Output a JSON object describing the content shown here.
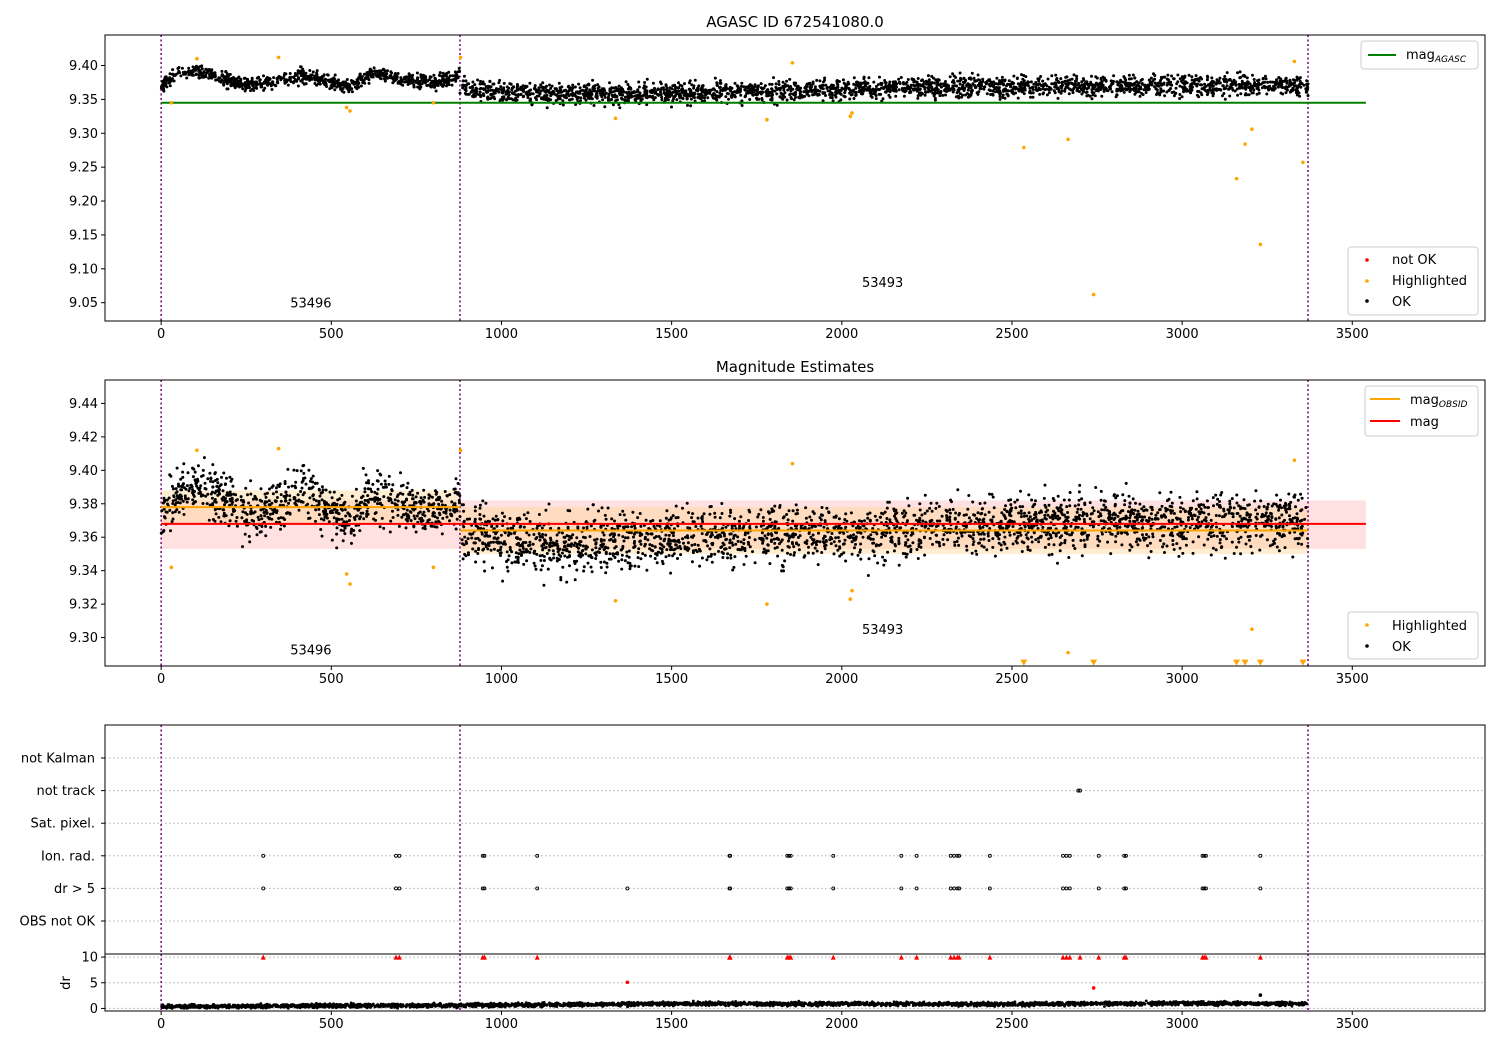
{
  "chart_data": [
    {
      "type": "scatter",
      "title": "AGASC ID 672541080.0",
      "xlim": [
        -165,
        3890
      ],
      "ylim": [
        9.023,
        9.445
      ],
      "x_ticks": [
        0,
        500,
        1000,
        1500,
        2000,
        2500,
        3000,
        3500
      ],
      "y_ticks": [
        9.05,
        9.1,
        9.15,
        9.2,
        9.25,
        9.3,
        9.35,
        9.4
      ],
      "y_tick_decimals": 2,
      "obsid_boundaries": [
        0,
        878,
        3370
      ],
      "obsid_labels": [
        {
          "text": "53496",
          "x": 440,
          "y": 9.043
        },
        {
          "text": "53493",
          "x": 2120,
          "y": 9.073
        }
      ],
      "lines": [
        {
          "name": "mag_AGASC",
          "color": "#008000",
          "x": [
            0,
            3540
          ],
          "y": [
            9.345,
            9.345
          ]
        }
      ],
      "ok_bands": [
        {
          "x_start": 0,
          "x_end": 878,
          "pattern": [
            [
              0,
              9.37
            ],
            [
              50,
              9.388
            ],
            [
              100,
              9.392
            ],
            [
              150,
              9.385
            ],
            [
              250,
              9.372
            ],
            [
              350,
              9.378
            ],
            [
              420,
              9.385
            ],
            [
              500,
              9.375
            ],
            [
              560,
              9.37
            ],
            [
              620,
              9.39
            ],
            [
              700,
              9.38
            ],
            [
              800,
              9.375
            ],
            [
              878,
              9.385
            ]
          ],
          "spread": 0.01
        },
        {
          "x_start": 878,
          "x_end": 3370,
          "pattern": [
            [
              878,
              9.368
            ],
            [
              1000,
              9.36
            ],
            [
              1200,
              9.358
            ],
            [
              1500,
              9.36
            ],
            [
              1800,
              9.362
            ],
            [
              2000,
              9.365
            ],
            [
              2300,
              9.368
            ],
            [
              2600,
              9.37
            ],
            [
              3000,
              9.37
            ],
            [
              3300,
              9.372
            ],
            [
              3370,
              9.368
            ]
          ],
          "spread": 0.014
        }
      ],
      "series": [
        {
          "name": "not OK",
          "color": "#ff0000",
          "marker": "dot",
          "x": [],
          "y": []
        },
        {
          "name": "Highlighted",
          "color": "#ffa500",
          "marker": "dot",
          "x": [
            30,
            105,
            345,
            545,
            555,
            800,
            880,
            1335,
            1780,
            1855,
            2025,
            2030,
            2535,
            2665,
            2740,
            3160,
            3185,
            3205,
            3230,
            3330,
            3355
          ],
          "y": [
            9.345,
            9.41,
            9.412,
            9.338,
            9.333,
            9.345,
            9.412,
            9.322,
            9.32,
            9.404,
            9.325,
            9.33,
            9.279,
            9.291,
            9.062,
            9.233,
            9.284,
            9.306,
            9.136,
            9.406,
            9.257
          ]
        },
        {
          "name": "OK",
          "color": "#000000",
          "marker": "dot",
          "x": [],
          "y": []
        }
      ],
      "legend_upper": {
        "placement": "upper right",
        "entries": [
          {
            "label": "mag",
            "sub": "AGASC",
            "color": "#008000"
          }
        ]
      },
      "legend_lower": {
        "placement": "lower right",
        "entries": [
          {
            "label": "not OK",
            "color": "#ff0000"
          },
          {
            "label": "Highlighted",
            "color": "#ffa500"
          },
          {
            "label": "OK",
            "color": "#000000"
          }
        ]
      }
    },
    {
      "type": "scatter",
      "title": "Magnitude Estimates",
      "xlim": [
        -165,
        3890
      ],
      "ylim": [
        9.283,
        9.454
      ],
      "x_ticks": [
        0,
        500,
        1000,
        1500,
        2000,
        2500,
        3000,
        3500
      ],
      "y_ticks": [
        9.3,
        9.32,
        9.34,
        9.36,
        9.38,
        9.4,
        9.42,
        9.44
      ],
      "y_tick_decimals": 2,
      "obsid_boundaries": [
        0,
        878,
        3370
      ],
      "obsid_labels": [
        {
          "text": "53496",
          "x": 440,
          "y": 9.29
        },
        {
          "text": "53493",
          "x": 2120,
          "y": 9.302
        }
      ],
      "bands": [
        {
          "color": "#ffaaaa",
          "opacity": 0.35,
          "x": [
            0,
            3540
          ],
          "y": [
            9.353,
            9.382
          ]
        },
        {
          "color": "#ffd79a",
          "opacity": 0.45,
          "x": [
            0,
            878
          ],
          "y": [
            9.368,
            9.388
          ]
        },
        {
          "color": "#ffd79a",
          "opacity": 0.45,
          "x": [
            878,
            3370
          ],
          "y": [
            9.35,
            9.378
          ]
        }
      ],
      "lines": [
        {
          "name": "mag_OBSID",
          "color": "#ffa500",
          "x": [
            0,
            878
          ],
          "y": [
            9.378,
            9.378
          ]
        },
        {
          "name": "mag_OBSID",
          "color": "#ffa500",
          "x": [
            878,
            3370
          ],
          "y": [
            9.364,
            9.364
          ]
        },
        {
          "name": "mag",
          "color": "#ff0000",
          "x": [
            0,
            3540
          ],
          "y": [
            9.368,
            9.368
          ]
        }
      ],
      "ok_bands": [
        {
          "x_start": 0,
          "x_end": 878,
          "pattern": [
            [
              0,
              9.372
            ],
            [
              50,
              9.385
            ],
            [
              100,
              9.392
            ],
            [
              150,
              9.388
            ],
            [
              250,
              9.372
            ],
            [
              350,
              9.38
            ],
            [
              420,
              9.388
            ],
            [
              500,
              9.374
            ],
            [
              560,
              9.37
            ],
            [
              620,
              9.388
            ],
            [
              700,
              9.378
            ],
            [
              800,
              9.374
            ],
            [
              878,
              9.385
            ]
          ],
          "spread": 0.014
        },
        {
          "x_start": 878,
          "x_end": 3370,
          "pattern": [
            [
              878,
              9.365
            ],
            [
              1000,
              9.357
            ],
            [
              1200,
              9.355
            ],
            [
              1500,
              9.36
            ],
            [
              1800,
              9.361
            ],
            [
              2000,
              9.363
            ],
            [
              2300,
              9.366
            ],
            [
              2600,
              9.368
            ],
            [
              3000,
              9.369
            ],
            [
              3300,
              9.37
            ],
            [
              3370,
              9.366
            ]
          ],
          "spread": 0.016
        }
      ],
      "series": [
        {
          "name": "Highlighted",
          "color": "#ffa500",
          "marker": "dot",
          "x": [
            30,
            105,
            345,
            545,
            555,
            800,
            880,
            1335,
            1780,
            1855,
            2025,
            2030,
            2665,
            3205,
            3330
          ],
          "y": [
            9.342,
            9.412,
            9.413,
            9.338,
            9.332,
            9.342,
            9.412,
            9.322,
            9.32,
            9.404,
            9.323,
            9.328,
            9.291,
            9.305,
            9.406
          ]
        },
        {
          "name": "below_axis",
          "color": "#ffa500",
          "marker": "triangle-down",
          "x": [
            2535,
            2740,
            3160,
            3185,
            3230,
            3355
          ],
          "y": [
            9.285,
            9.285,
            9.285,
            9.285,
            9.285,
            9.285
          ]
        },
        {
          "name": "OK",
          "color": "#000000",
          "marker": "dot",
          "x": [],
          "y": []
        }
      ],
      "legend_upper": {
        "placement": "upper right",
        "entries": [
          {
            "label": "mag",
            "sub": "OBSID",
            "color": "#ffa500"
          },
          {
            "label": "mag",
            "color": "#ff0000"
          }
        ]
      },
      "legend_lower": {
        "placement": "lower right",
        "entries": [
          {
            "label": "Highlighted",
            "color": "#ffa500"
          },
          {
            "label": "OK",
            "color": "#000000"
          }
        ]
      }
    },
    {
      "type": "scatter",
      "xlim": [
        -165,
        3890
      ],
      "categories": [
        "not Kalman",
        "not track",
        "Sat. pixel.",
        "Ion. rad.",
        "dr > 5",
        "OBS not OK"
      ],
      "obsid_boundaries": [
        0,
        878,
        3370
      ],
      "flags": {
        "not track": [
          2695,
          2700
        ],
        "Ion. rad.": [
          300,
          690,
          700,
          945,
          950,
          1105,
          1670,
          1672,
          1840,
          1845,
          1850,
          1975,
          2175,
          2220,
          2320,
          2330,
          2340,
          2345,
          2435,
          2650,
          2660,
          2670,
          2755,
          2830,
          2835,
          3060,
          3065,
          3070,
          3230
        ],
        "dr > 5": [
          300,
          690,
          700,
          945,
          950,
          1105,
          1370,
          1670,
          1672,
          1840,
          1845,
          1850,
          1975,
          2175,
          2220,
          2320,
          2330,
          2340,
          2345,
          2435,
          2650,
          2660,
          2670,
          2755,
          2830,
          2835,
          3060,
          3065,
          3070,
          3230
        ]
      }
    },
    {
      "type": "scatter",
      "ylabel": "dr",
      "xlim": [
        -165,
        3890
      ],
      "ylim": [
        -0.5,
        10.6
      ],
      "x_ticks": [
        0,
        500,
        1000,
        1500,
        2000,
        2500,
        3000,
        3500
      ],
      "y_ticks": [
        0,
        5,
        10
      ],
      "y_tick_decimals": 0,
      "obsid_boundaries": [
        0,
        878,
        3370
      ],
      "clipped_markers": {
        "color": "#ff0000",
        "y": 10,
        "x": [
          300,
          690,
          700,
          945,
          950,
          1105,
          1670,
          1672,
          1840,
          1845,
          1850,
          1975,
          2175,
          2220,
          2320,
          2330,
          2340,
          2345,
          2435,
          2650,
          2660,
          2670,
          2700,
          2755,
          2830,
          2835,
          3060,
          3065,
          3070,
          3230
        ]
      },
      "series": [
        {
          "name": "dr outliers",
          "color": "#ff0000",
          "marker": "dot",
          "x": [
            1370,
            2740
          ],
          "y": [
            5.1,
            4.0
          ]
        },
        {
          "name": "dr",
          "color": "#000000",
          "marker": "dot",
          "x": [
            3230
          ],
          "y": [
            2.6
          ]
        }
      ],
      "dr_baseline": {
        "x_start": 0,
        "x_end": 3370,
        "pattern": [
          [
            0,
            0.35
          ],
          [
            400,
            0.5
          ],
          [
            878,
            0.6
          ],
          [
            1500,
            0.9
          ],
          [
            2000,
            0.9
          ],
          [
            2500,
            0.8
          ],
          [
            3000,
            1.0
          ],
          [
            3370,
            0.9
          ]
        ],
        "spread": 0.35
      }
    }
  ]
}
